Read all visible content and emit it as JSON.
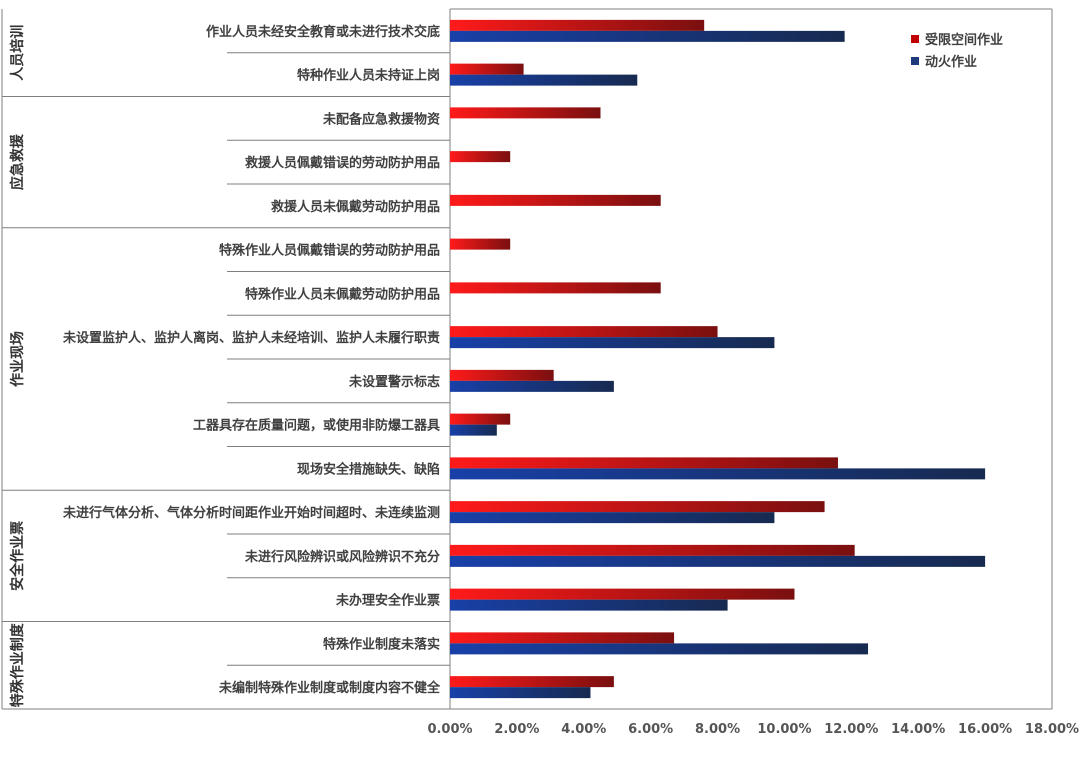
{
  "chart_data": {
    "type": "bar",
    "orientation": "horizontal",
    "title": "",
    "xlabel": "",
    "ylabel": "",
    "xlim": [
      0,
      18
    ],
    "x_ticks": [
      "0.00%",
      "2.00%",
      "4.00%",
      "6.00%",
      "8.00%",
      "10.00%",
      "12.00%",
      "14.00%",
      "16.00%",
      "18.00%"
    ],
    "grid": false,
    "legend_position": "top-right",
    "groups": [
      {
        "label": "人员培训",
        "count": 2
      },
      {
        "label": "应急救援",
        "count": 3
      },
      {
        "label": "作业现场",
        "count": 6
      },
      {
        "label": "安全作业票",
        "count": 3
      },
      {
        "label": "特殊作业制度",
        "count": 2
      }
    ],
    "categories": [
      "作业人员未经安全教育或未进行技术交底",
      "特种作业人员未持证上岗",
      "未配备应急救援物资",
      "救援人员佩戴错误的劳动防护用品",
      "救援人员未佩戴劳动防护用品",
      "特殊作业人员佩戴错误的劳动防护用品",
      "特殊作业人员未佩戴劳动防护用品",
      "未设置监护人、监护人离岗、监护人未经培训、监护人未履行职责",
      "未设置警示标志",
      "工器具存在质量问题，或使用非防爆工器具",
      "现场安全措施缺失、缺陷",
      "未进行气体分析、气体分析时间距作业开始时间超时、未连续监测",
      "未进行风险辨识或风险辨识不充分",
      "未办理安全作业票",
      "特殊作业制度未落实",
      "未编制特殊作业制度或制度内容不健全"
    ],
    "series": [
      {
        "name": "受限空间作业",
        "color": "#c00000",
        "values": [
          7.6,
          2.2,
          4.5,
          1.8,
          6.3,
          1.8,
          6.3,
          8.0,
          3.1,
          1.8,
          11.6,
          11.2,
          12.1,
          10.3,
          6.7,
          4.9
        ]
      },
      {
        "name": "动火作业",
        "color": "#1f3a7a",
        "values": [
          11.8,
          5.6,
          0,
          0,
          0,
          0,
          0,
          9.7,
          4.9,
          1.4,
          16.0,
          9.7,
          16.0,
          8.3,
          12.5,
          4.2
        ]
      }
    ]
  }
}
